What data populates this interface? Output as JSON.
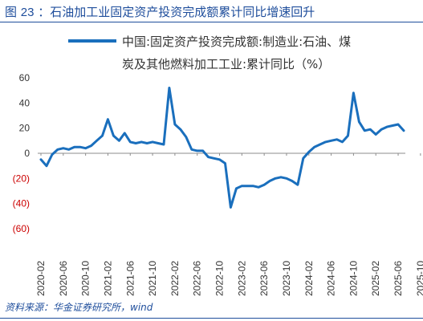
{
  "figure": {
    "title_prefix": "图",
    "number": "23",
    "title_text": "：石油加工业固定资产投资完成额累计同比增速回升",
    "source": "资料来源：华金证券研究所，wind"
  },
  "colors": {
    "line": "#1a6fbd",
    "negative_tick": "#cc0000",
    "title": "#1f4e9c",
    "axis_text": "#333333"
  },
  "chart_data": {
    "type": "line",
    "legend_placement": "top-right",
    "legend_lines": [
      "中国:固定资产投资完成额:制造业:石油、煤",
      "炭及其他燃料加工工业:累计同比（%）"
    ],
    "series": [
      {
        "name": "中国:固定资产投资完成额:制造业:石油、煤炭及其他燃料加工工业:累计同比（%）",
        "values": [
          -5,
          -10,
          -1,
          3,
          4,
          3,
          5,
          5,
          4,
          6,
          10,
          14,
          27,
          14,
          10,
          16,
          9,
          8,
          9,
          8,
          9,
          8,
          7,
          52,
          23,
          19,
          13,
          3,
          2,
          2,
          -3,
          -4,
          -5,
          -8,
          -43,
          -28,
          -26,
          -26,
          -26,
          -27,
          -25,
          -22,
          -20,
          -19,
          -20,
          -22,
          -25,
          -4,
          1,
          5,
          7,
          9,
          10,
          11,
          9,
          14,
          48,
          25,
          18,
          19,
          15,
          19,
          21,
          22,
          23,
          18
        ]
      }
    ],
    "x_tick_labels": [
      "2020-02",
      "2020-06",
      "2020-10",
      "2021-02",
      "2021-06",
      "2021-10",
      "2022-02",
      "2022-06",
      "2022-10",
      "2023-02",
      "2023-06",
      "2023-10",
      "2024-02",
      "2024-06",
      "2024-10",
      "2025-02",
      "2025-06",
      "2025-10"
    ],
    "y_tick_labels": [
      "60",
      "40",
      "20",
      "0",
      "(20)",
      "(40)",
      "(60)"
    ],
    "ylim": [
      -60,
      60
    ],
    "y_ticks": [
      60,
      40,
      20,
      0,
      -20,
      -40,
      -60
    ],
    "grid": false
  }
}
